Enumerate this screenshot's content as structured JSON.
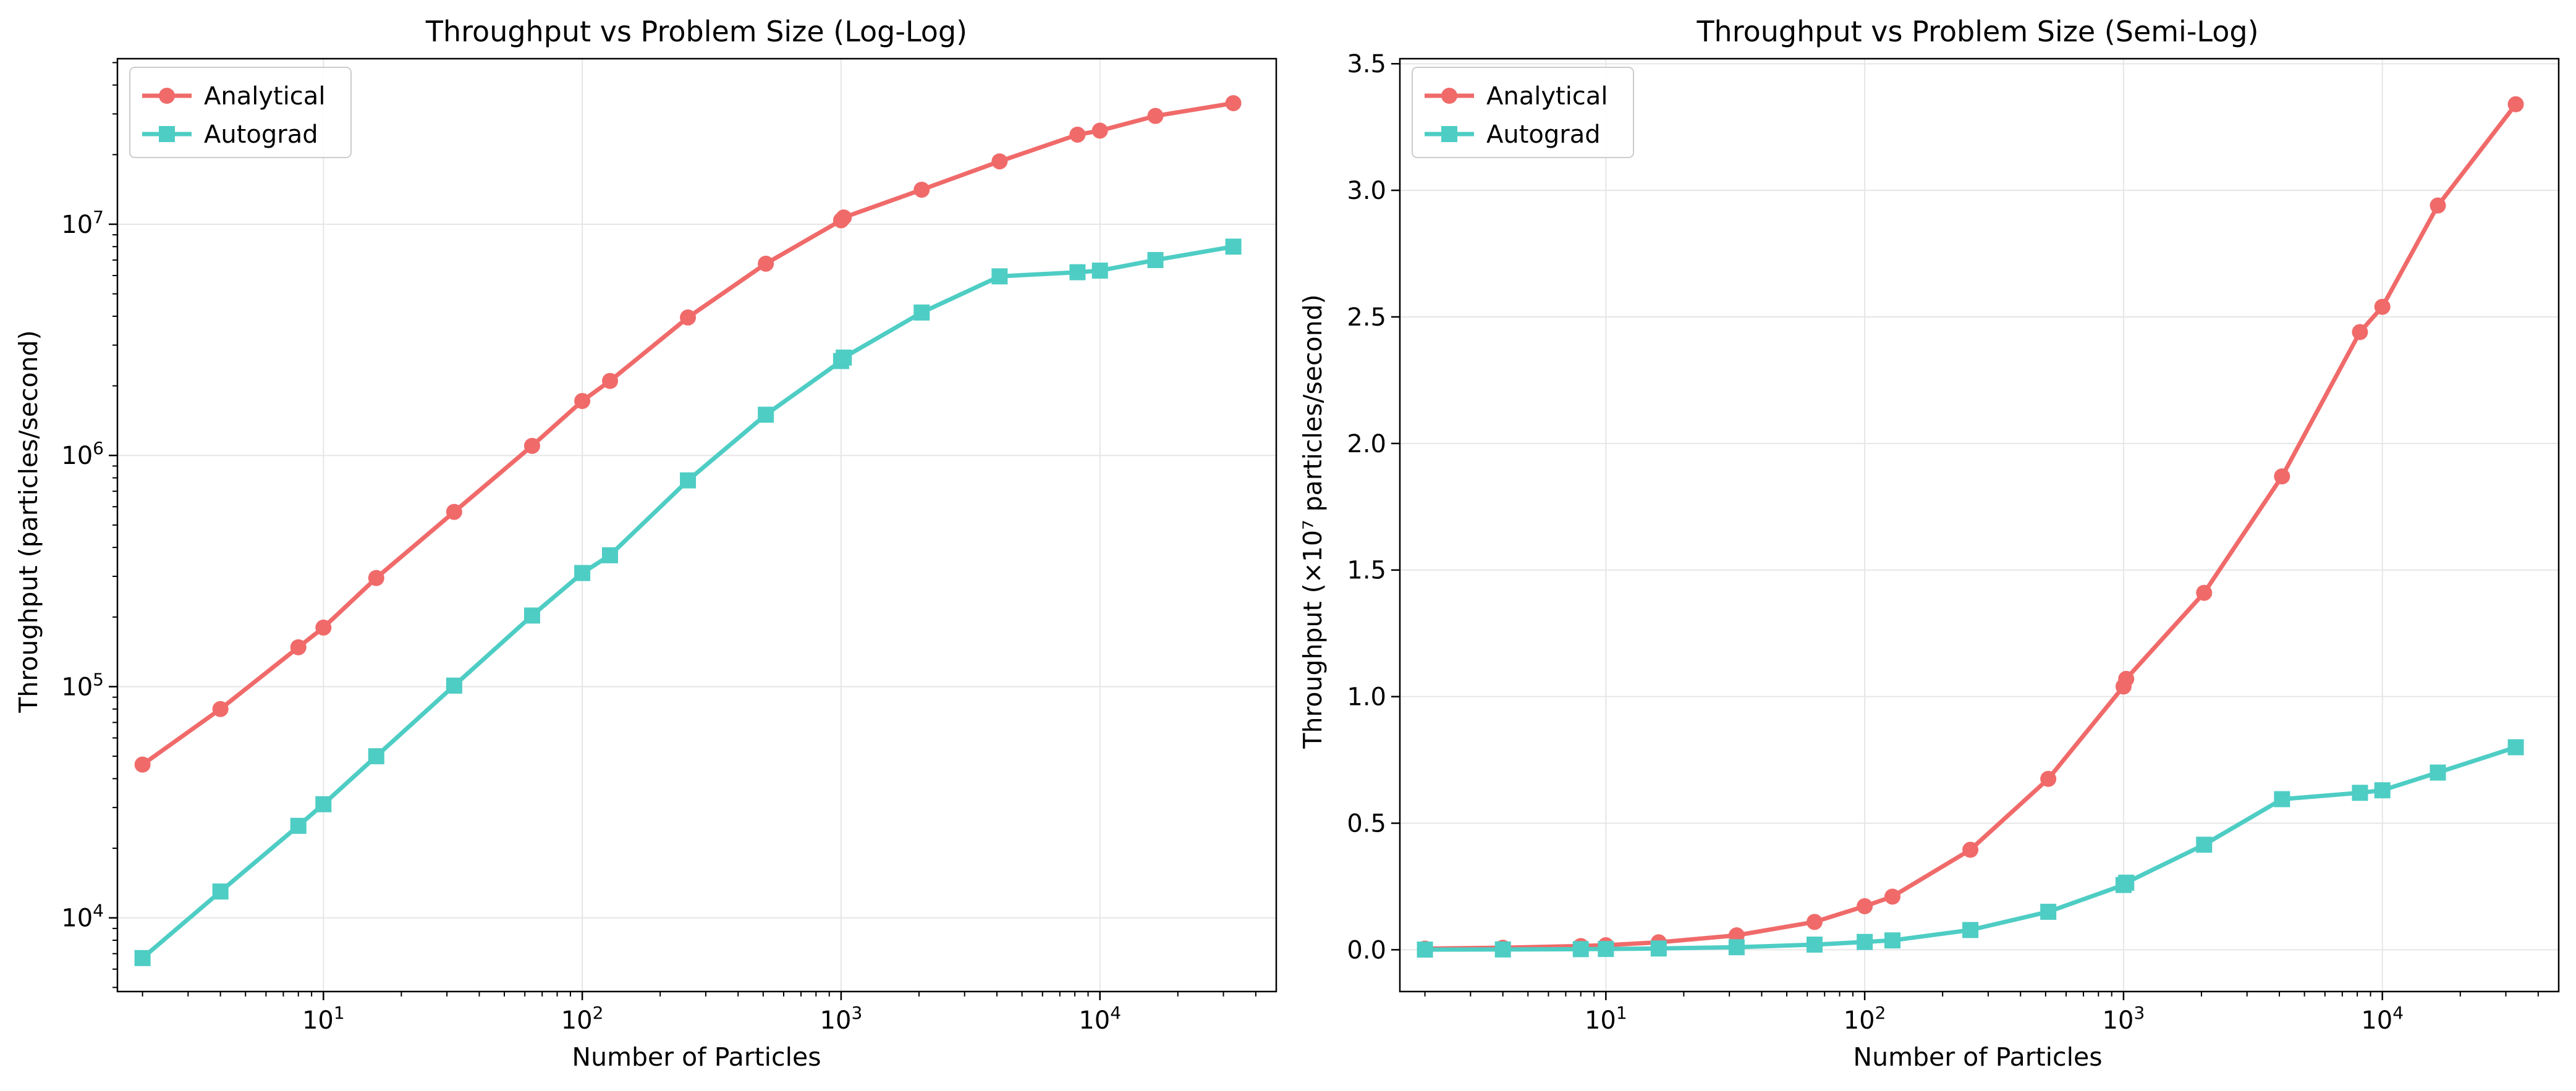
{
  "chart_data": [
    {
      "type": "line",
      "title": "Throughput vs Problem Size (Log-Log)",
      "xlabel": "Number of Particles",
      "ylabel": "Throughput (particles/second)",
      "xscale": "log",
      "yscale": "log",
      "xlim": [
        1.6,
        48000
      ],
      "ylim": [
        4800,
        52000000
      ],
      "x_ticks": [
        {
          "value": 10,
          "base": "10",
          "exp": "1"
        },
        {
          "value": 100,
          "base": "10",
          "exp": "2"
        },
        {
          "value": 1000,
          "base": "10",
          "exp": "3"
        },
        {
          "value": 10000,
          "base": "10",
          "exp": "4"
        }
      ],
      "y_ticks": [
        {
          "value": 10000,
          "base": "10",
          "exp": "4"
        },
        {
          "value": 100000,
          "base": "10",
          "exp": "5"
        },
        {
          "value": 1000000,
          "base": "10",
          "exp": "6"
        },
        {
          "value": 10000000,
          "base": "10",
          "exp": "7"
        }
      ],
      "grid": true,
      "legend_position": "top-left",
      "series": [
        {
          "name": "Analytical",
          "color": "#f06a6a",
          "marker": "circle",
          "x": [
            2,
            4,
            8,
            10,
            16,
            32,
            64,
            100,
            128,
            256,
            512,
            1000,
            1024,
            2048,
            4096,
            8192,
            10000,
            16384,
            32768
          ],
          "y": [
            46000,
            80000,
            148000,
            180000,
            295000,
            570000,
            1100000,
            1720000,
            2100000,
            3950000,
            6750000,
            10400000,
            10700000,
            14100000,
            18700000,
            24400000,
            25400000,
            29400000,
            33400000
          ]
        },
        {
          "name": "Autograd",
          "color": "#4ecdc4",
          "marker": "square",
          "x": [
            2,
            4,
            8,
            10,
            16,
            32,
            64,
            100,
            128,
            256,
            512,
            1000,
            1024,
            2048,
            4096,
            8192,
            10000,
            16384,
            32768
          ],
          "y": [
            6700,
            13000,
            25000,
            31000,
            50000,
            101000,
            203000,
            310000,
            370000,
            780000,
            1500000,
            2560000,
            2650000,
            4150000,
            5950000,
            6200000,
            6300000,
            7000000,
            8000000
          ]
        }
      ]
    },
    {
      "type": "line",
      "title": "Throughput vs Problem Size (Semi-Log)",
      "xlabel": "Number of Particles",
      "ylabel": "Throughput (×10⁷ particles/second)",
      "xscale": "log",
      "yscale": "linear",
      "xlim": [
        1.6,
        48000
      ],
      "ylim": [
        -0.165,
        3.52
      ],
      "x_ticks": [
        {
          "value": 10,
          "base": "10",
          "exp": "1"
        },
        {
          "value": 100,
          "base": "10",
          "exp": "2"
        },
        {
          "value": 1000,
          "base": "10",
          "exp": "3"
        },
        {
          "value": 10000,
          "base": "10",
          "exp": "4"
        }
      ],
      "y_ticks": [
        {
          "value": 0.0,
          "label": "0.0"
        },
        {
          "value": 0.5,
          "label": "0.5"
        },
        {
          "value": 1.0,
          "label": "1.0"
        },
        {
          "value": 1.5,
          "label": "1.5"
        },
        {
          "value": 2.0,
          "label": "2.0"
        },
        {
          "value": 2.5,
          "label": "2.5"
        },
        {
          "value": 3.0,
          "label": "3.0"
        },
        {
          "value": 3.5,
          "label": "3.5"
        }
      ],
      "grid": true,
      "legend_position": "top-left",
      "series": [
        {
          "name": "Analytical",
          "color": "#f06a6a",
          "marker": "circle",
          "x": [
            2,
            4,
            8,
            10,
            16,
            32,
            64,
            100,
            128,
            256,
            512,
            1000,
            1024,
            2048,
            4096,
            8192,
            10000,
            16384,
            32768
          ],
          "y": [
            0.0046,
            0.008,
            0.0148,
            0.018,
            0.0295,
            0.057,
            0.11,
            0.172,
            0.21,
            0.395,
            0.675,
            1.04,
            1.07,
            1.41,
            1.87,
            2.44,
            2.54,
            2.94,
            3.34
          ]
        },
        {
          "name": "Autograd",
          "color": "#4ecdc4",
          "marker": "square",
          "x": [
            2,
            4,
            8,
            10,
            16,
            32,
            64,
            100,
            128,
            256,
            512,
            1000,
            1024,
            2048,
            4096,
            8192,
            10000,
            16384,
            32768
          ],
          "y": [
            0.0007,
            0.0013,
            0.0025,
            0.0031,
            0.005,
            0.0101,
            0.0203,
            0.031,
            0.037,
            0.078,
            0.15,
            0.256,
            0.265,
            0.415,
            0.595,
            0.62,
            0.63,
            0.7,
            0.8
          ]
        }
      ]
    }
  ]
}
